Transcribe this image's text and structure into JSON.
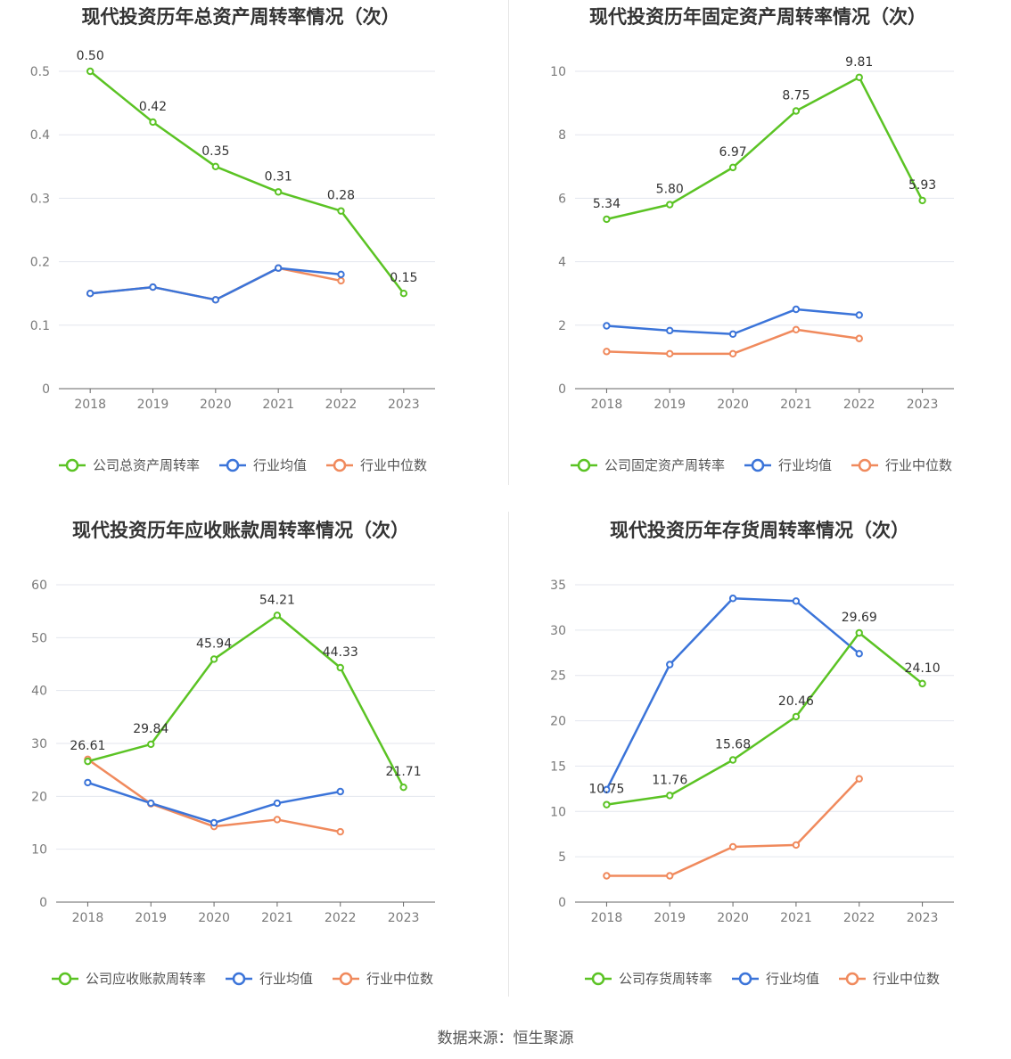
{
  "colors": {
    "company": "#5bc324",
    "avg": "#3b74d9",
    "median": "#f08a5d",
    "grid": "#e3e6ee",
    "axis": "#666666"
  },
  "source": "数据来源：恒生聚源",
  "chart_data": [
    {
      "type": "line",
      "title": "现代投资历年总资产周转率情况（次）",
      "categories": [
        "2018",
        "2019",
        "2020",
        "2021",
        "2022",
        "2023"
      ],
      "ylim": [
        0,
        0.5
      ],
      "yticks": [
        "0",
        "0.1",
        "0.2",
        "0.3",
        "0.4",
        "0.5"
      ],
      "grid": true,
      "legend_position": "bottom",
      "series": [
        {
          "name": "公司总资产周转率",
          "key": "company",
          "values": [
            0.5,
            0.42,
            0.35,
            0.31,
            0.28,
            0.15
          ],
          "labels": [
            "0.50",
            "0.42",
            "0.35",
            "0.31",
            "0.28",
            "0.15"
          ]
        },
        {
          "name": "行业均值",
          "key": "avg",
          "values": [
            0.15,
            0.16,
            0.14,
            0.19,
            0.18,
            null
          ]
        },
        {
          "name": "行业中位数",
          "key": "median",
          "values": [
            0.15,
            0.16,
            0.14,
            0.19,
            0.17,
            null
          ]
        }
      ]
    },
    {
      "type": "line",
      "title": "现代投资历年固定资产周转率情况（次）",
      "categories": [
        "2018",
        "2019",
        "2020",
        "2021",
        "2022",
        "2023"
      ],
      "ylim": [
        0,
        10
      ],
      "yticks": [
        "0",
        "2",
        "4",
        "6",
        "8",
        "10"
      ],
      "grid": true,
      "legend_position": "bottom",
      "series": [
        {
          "name": "公司固定资产周转率",
          "key": "company",
          "values": [
            5.34,
            5.8,
            6.97,
            8.75,
            9.81,
            5.93
          ],
          "labels": [
            "5.34",
            "5.80",
            "6.97",
            "8.75",
            "9.81",
            "5.93"
          ]
        },
        {
          "name": "行业均值",
          "key": "avg",
          "values": [
            1.98,
            1.83,
            1.72,
            2.5,
            2.32,
            null
          ]
        },
        {
          "name": "行业中位数",
          "key": "median",
          "values": [
            1.17,
            1.1,
            1.1,
            1.86,
            1.58,
            null
          ]
        }
      ]
    },
    {
      "type": "line",
      "title": "现代投资历年应收账款周转率情况（次）",
      "categories": [
        "2018",
        "2019",
        "2020",
        "2021",
        "2022",
        "2023"
      ],
      "ylim": [
        0,
        60
      ],
      "yticks": [
        "0",
        "10",
        "20",
        "30",
        "40",
        "50",
        "60"
      ],
      "grid": true,
      "legend_position": "bottom",
      "series": [
        {
          "name": "公司应收账款周转率",
          "key": "company",
          "values": [
            26.61,
            29.84,
            45.94,
            54.21,
            44.33,
            21.71
          ],
          "labels": [
            "26.61",
            "29.84",
            "45.94",
            "54.21",
            "44.33",
            "21.71"
          ]
        },
        {
          "name": "行业均值",
          "key": "avg",
          "values": [
            22.6,
            18.7,
            15.0,
            18.7,
            20.9,
            null
          ]
        },
        {
          "name": "行业中位数",
          "key": "median",
          "values": [
            27.0,
            18.6,
            14.3,
            15.6,
            13.3,
            null
          ]
        }
      ]
    },
    {
      "type": "line",
      "title": "现代投资历年存货周转率情况（次）",
      "categories": [
        "2018",
        "2019",
        "2020",
        "2021",
        "2022",
        "2023"
      ],
      "ylim": [
        0,
        35
      ],
      "yticks": [
        "0",
        "5",
        "10",
        "15",
        "20",
        "25",
        "30",
        "35"
      ],
      "grid": true,
      "legend_position": "bottom",
      "series": [
        {
          "name": "公司存货周转率",
          "key": "company",
          "values": [
            10.75,
            11.76,
            15.68,
            20.46,
            29.69,
            24.1
          ],
          "labels": [
            "10.75",
            "11.76",
            "15.68",
            "20.46",
            "29.69",
            "24.10"
          ]
        },
        {
          "name": "行业均值",
          "key": "avg",
          "values": [
            12.4,
            26.2,
            33.5,
            33.2,
            27.4,
            null
          ]
        },
        {
          "name": "行业中位数",
          "key": "median",
          "values": [
            2.9,
            2.9,
            6.1,
            6.3,
            13.6,
            null
          ]
        }
      ]
    }
  ]
}
